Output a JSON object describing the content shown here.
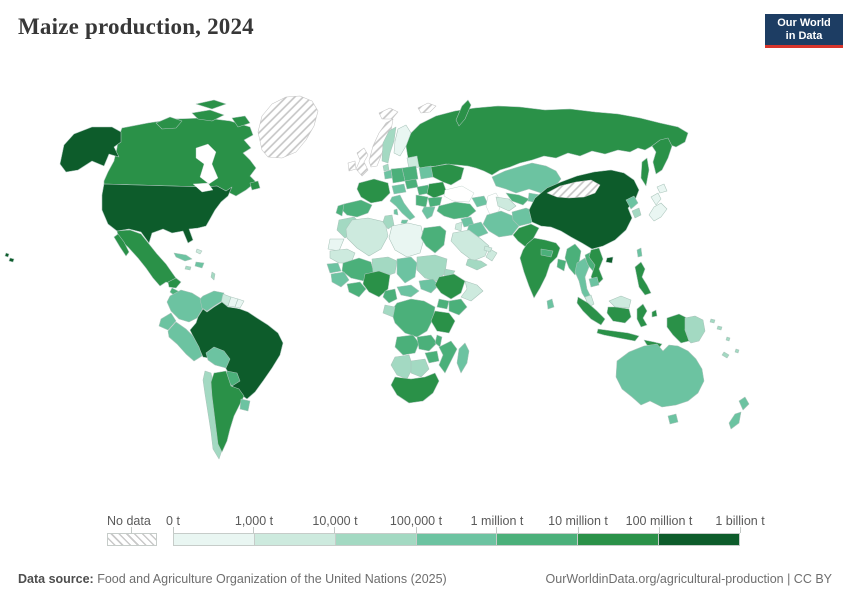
{
  "header": {
    "title": "Maize production, 2024"
  },
  "logo": {
    "line1": "Our World",
    "line2": "in Data",
    "bg": "#1d3d63",
    "accent": "#d8352c"
  },
  "legend": {
    "no_data_label": "No data",
    "tick_labels": [
      "0 t",
      "1,000 t",
      "10,000 t",
      "100,000 t",
      "1 million t",
      "10 million t",
      "100 million t",
      "1 billion t"
    ],
    "bins": [
      {
        "range": "0 t – 1,000 t",
        "color": "#e9f6f2"
      },
      {
        "range": "1,000 t – 10,000 t",
        "color": "#cdeade"
      },
      {
        "range": "10,000 t – 100,000 t",
        "color": "#a3d9c2"
      },
      {
        "range": "100,000 t – 1 million t",
        "color": "#6cc3a1"
      },
      {
        "range": "1 million t – 10 million t",
        "color": "#4bb07a"
      },
      {
        "range": "10 million t – 100 million t",
        "color": "#2a9148"
      },
      {
        "range": "100 million t – 1 billion t",
        "color": "#0d5c2b"
      }
    ]
  },
  "footer": {
    "source_label": "Data source:",
    "source_text": " Food and Agriculture Organization of the United Nations (2025)",
    "link_text": "OurWorldinData.org/agricultural-production | CC BY"
  },
  "map": {
    "border_color": "#a9c4ba",
    "sea_color": "#ffffff",
    "hatch_line_color": "#c4c4c4",
    "regions": {
      "united-states": 7,
      "hawaii": 7,
      "canada": 6,
      "greenland": 0,
      "mexico": 6,
      "central-america": 5,
      "cuba": 4,
      "hispaniola": 4,
      "jamaica": 3,
      "bahamas": 2,
      "lesser-antilles": 3,
      "colombia": 4,
      "venezuela": 4,
      "guyana": 2,
      "suriname": 1,
      "french-guiana": 1,
      "ecuador": 4,
      "peru": 4,
      "brazil": 7,
      "bolivia": 4,
      "paraguay": 5,
      "chile": 3,
      "argentina": 6,
      "uruguay": 4,
      "iceland": 0,
      "svalbard": 0,
      "norway": 0,
      "sweden": 3,
      "finland": 1,
      "uk": 0,
      "ireland": 0,
      "denmark": 3,
      "baltics": 2,
      "belarus": 4,
      "poland": 5,
      "germany": 5,
      "netherlands-belgium": 4,
      "france": 6,
      "spain": 5,
      "portugal": 5,
      "italy": 4,
      "switzerland-austria": 4,
      "czechia": 5,
      "hungary": 5,
      "romania": 6,
      "serbia-balkans": 5,
      "bulgaria": 5,
      "greece": 4,
      "ukraine": 6,
      "russia": 6,
      "kazakhstan": 4,
      "uzbekistan": 5,
      "turkmenistan": 2,
      "kyrgyz-tajik": 4,
      "caucasus": 4,
      "turkey": 5,
      "syria": 4,
      "jordan-israel": 2,
      "iraq": 4,
      "iran": 4,
      "saudi-arabia": 2,
      "yemen": 3,
      "oman": 2,
      "uae-qatar": 2,
      "afghanistan": 4,
      "pakistan": 6,
      "india": 6,
      "nepal": 5,
      "bangladesh": 5,
      "sri-lanka": 4,
      "china": 7,
      "mongolia": 0,
      "north-korea": 4,
      "south-korea": 3,
      "japan": 1,
      "taiwan": 4,
      "myanmar": 5,
      "thailand": 4,
      "laos": 5,
      "vietnam": 6,
      "cambodia": 4,
      "malaysia": 2,
      "indonesia": 6,
      "philippines": 6,
      "papua-new-guinea": 3,
      "australia": 4,
      "new-zealand": 4,
      "solomon-islands": 3,
      "vanuatu-fiji": 3,
      "new-caledonia": 3,
      "morocco": 3,
      "western-sahara": 1,
      "algeria": 2,
      "tunisia": 3,
      "libya": 1,
      "egypt": 5,
      "mauritania": 2,
      "senegal": 4,
      "mali": 5,
      "niger": 3,
      "chad": 4,
      "sudan": 3,
      "eritrea": 3,
      "guinea-group": 4,
      "ivory-ghana": 5,
      "nigeria": 6,
      "cameroon": 5,
      "car": 4,
      "south-sudan": 4,
      "ethiopia": 6,
      "somalia": 2,
      "kenya": 5,
      "uganda": 5,
      "drc": 5,
      "gabon-congo": 3,
      "tanzania": 6,
      "angola": 5,
      "zambia": 5,
      "malawi": 5,
      "mozambique": 5,
      "zimbabwe": 5,
      "namibia": 3,
      "botswana": 3,
      "south-africa": 6,
      "madagascar": 4
    }
  }
}
